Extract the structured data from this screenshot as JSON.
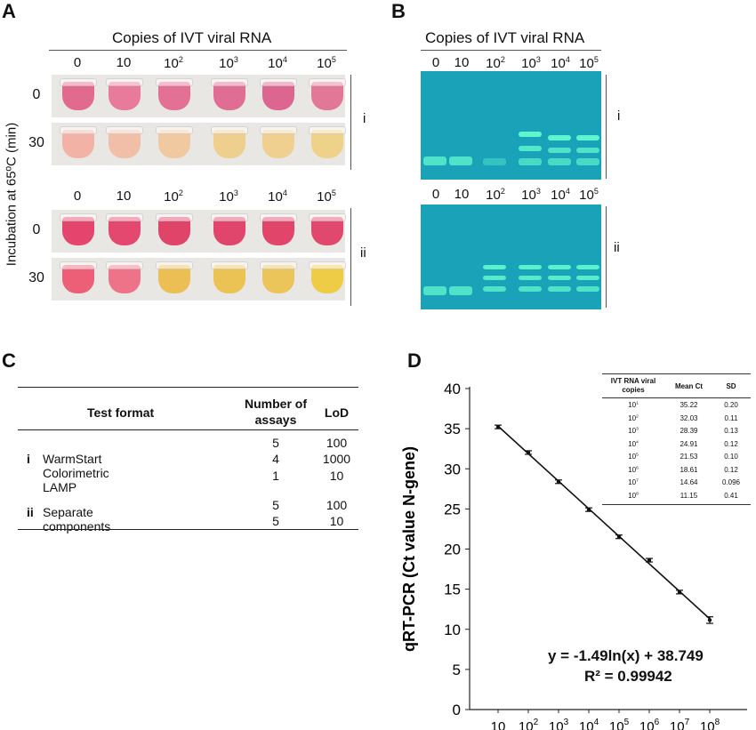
{
  "panelA": {
    "label": "A",
    "header": "Copies of IVT viral RNA",
    "ylabel": "Incubation at 65ºC (min)",
    "copies": [
      {
        "base": "0",
        "exp": ""
      },
      {
        "base": "10",
        "exp": ""
      },
      {
        "base": "10",
        "exp": "2"
      },
      {
        "base": "10",
        "exp": "3"
      },
      {
        "base": "10",
        "exp": "4"
      },
      {
        "base": "10",
        "exp": "5"
      }
    ],
    "rows": [
      {
        "time": "0",
        "colors": [
          "#e26a8f",
          "#e87a9c",
          "#e37095",
          "#e06d93",
          "#dd6690",
          "#e27898"
        ]
      },
      {
        "time": "30",
        "colors": [
          "#f3b2a6",
          "#f1bfa8",
          "#f1c9a0",
          "#efcf8e",
          "#f0d090",
          "#eed28a"
        ]
      },
      {
        "time": "0",
        "colors": [
          "#e5456c",
          "#e4486f",
          "#e04468",
          "#e2456b",
          "#e1456a",
          "#e1486d"
        ]
      },
      {
        "time": "30",
        "colors": [
          "#ec5f77",
          "#ef7388",
          "#ecbf55",
          "#ebc355",
          "#ecc55a",
          "#efcc45"
        ]
      }
    ],
    "groups": [
      "i",
      "ii"
    ]
  },
  "panelB": {
    "label": "B",
    "header": "Copies of IVT viral RNA",
    "copies": [
      {
        "base": "0",
        "exp": ""
      },
      {
        "base": "10",
        "exp": ""
      },
      {
        "base": "10",
        "exp": "2"
      },
      {
        "base": "10",
        "exp": "3"
      },
      {
        "base": "10",
        "exp": "4"
      },
      {
        "base": "10",
        "exp": "5"
      }
    ],
    "groups": [
      "i",
      "ii"
    ],
    "gel_bg": "#1aa3b8",
    "band_color": "#66ffd0"
  },
  "panelC": {
    "label": "C",
    "headers": {
      "format": "Test format",
      "number": "Number of assays",
      "lod": "LoD"
    },
    "groups": [
      {
        "roman": "i",
        "name": "WarmStart Colorimetric LAMP",
        "rows": [
          {
            "n": "5",
            "lod": "100"
          },
          {
            "n": "4",
            "lod": "1000"
          },
          {
            "n": "1",
            "lod": "10"
          }
        ]
      },
      {
        "roman": "ii",
        "name": "Separate components",
        "rows": [
          {
            "n": "5",
            "lod": "100"
          },
          {
            "n": "5",
            "lod": "10"
          }
        ]
      }
    ]
  },
  "panelD": {
    "label": "D",
    "equation": "y = -1.49ln(x) + 38.749",
    "r2": "R² = 0.99942",
    "inset": {
      "headers": [
        "IVT RNA viral copies",
        "Mean Ct",
        "SD"
      ],
      "rows": [
        {
          "copies": {
            "base": "10",
            "exp": "1"
          },
          "ct": "35.22",
          "sd": "0.20"
        },
        {
          "copies": {
            "base": "10",
            "exp": "2"
          },
          "ct": "32.03",
          "sd": "0.11"
        },
        {
          "copies": {
            "base": "10",
            "exp": "3"
          },
          "ct": "28.39",
          "sd": "0.13"
        },
        {
          "copies": {
            "base": "10",
            "exp": "4"
          },
          "ct": "24.91",
          "sd": "0.12"
        },
        {
          "copies": {
            "base": "10",
            "exp": "5"
          },
          "ct": "21.53",
          "sd": "0.10"
        },
        {
          "copies": {
            "base": "10",
            "exp": "6"
          },
          "ct": "18.61",
          "sd": "0.12"
        },
        {
          "copies": {
            "base": "10",
            "exp": "7"
          },
          "ct": "14.64",
          "sd": "0.096"
        },
        {
          "copies": {
            "base": "10",
            "exp": "8"
          },
          "ct": "11.15",
          "sd": "0.41"
        }
      ]
    }
  },
  "chart_data": {
    "type": "scatter",
    "xscale": "log",
    "x": [
      10,
      100,
      1000,
      10000,
      100000,
      1000000,
      10000000,
      100000000
    ],
    "xtick_labels": [
      {
        "base": "10",
        "exp": ""
      },
      {
        "base": "10",
        "exp": "2"
      },
      {
        "base": "10",
        "exp": "3"
      },
      {
        "base": "10",
        "exp": "4"
      },
      {
        "base": "10",
        "exp": "5"
      },
      {
        "base": "10",
        "exp": "6"
      },
      {
        "base": "10",
        "exp": "7"
      },
      {
        "base": "10",
        "exp": "8"
      }
    ],
    "y": [
      35.22,
      32.03,
      28.39,
      24.91,
      21.53,
      18.61,
      14.64,
      11.15
    ],
    "yerr": [
      0.2,
      0.11,
      0.13,
      0.12,
      0.1,
      0.12,
      0.096,
      0.41
    ],
    "ylabel": "qRT-PCR (Ct value N-gene)",
    "ylim": [
      0,
      40
    ],
    "yticks": [
      0,
      5,
      10,
      15,
      20,
      25,
      30,
      35,
      40
    ],
    "trendline": {
      "slope": -1.49,
      "intercept": 38.749,
      "form": "ln"
    },
    "grid": false
  }
}
